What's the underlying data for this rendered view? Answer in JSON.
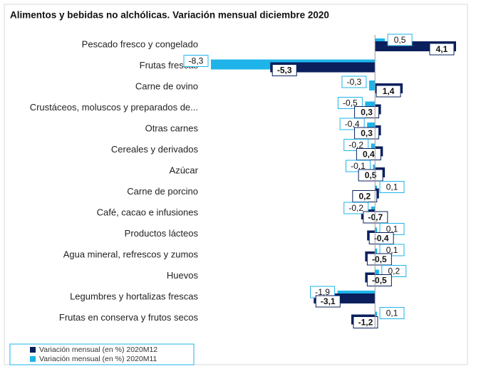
{
  "chart_data": {
    "type": "bar",
    "orientation": "horizontal",
    "title": "Alimentos y bebidas no alchólicas. Variación mensual diciembre 2020",
    "categories": [
      "Pescado fresco y congelado",
      "Frutas frescas",
      "Carne de ovino",
      "Crustáceos, moluscos y preparados de...",
      "Otras carnes",
      "Cereales y derivados",
      "Azúcar",
      "Carne de porcino",
      "Café, cacao e infusiones",
      "Productos lácteos",
      "Agua mineral, refrescos  y zumos",
      "Huevos",
      "Legumbres y hortalizas frescas",
      "Frutas en conserva y frutos secos"
    ],
    "series": [
      {
        "name": "Variación mensual (en %) 2020M12",
        "color": "#0a1f5c",
        "values": [
          4.1,
          -5.3,
          1.4,
          0.3,
          0.3,
          0.4,
          0.5,
          0.2,
          -0.7,
          -0.4,
          -0.5,
          -0.5,
          -3.1,
          -1.2
        ],
        "value_labels": [
          "4,1",
          "-5,3",
          "1,4",
          "0,3",
          "0,3",
          "0,4",
          "0,5",
          "0,2",
          "-0,7",
          "-0,4",
          "-0,5",
          "-0,5",
          "-3,1",
          "-1,2"
        ]
      },
      {
        "name": "Variación mensual (en %) 2020M11",
        "color": "#1eb4ea",
        "values": [
          0.5,
          -8.3,
          -0.3,
          -0.5,
          -0.4,
          -0.2,
          -0.1,
          0.1,
          -0.2,
          0.1,
          0.1,
          0.2,
          -1.9,
          0.1
        ],
        "value_labels": [
          "0,5",
          "-8,3",
          "-0,3",
          "-0,5",
          "-0,4",
          "-0,2",
          "-0,1",
          "0,1",
          "-0,2",
          "0,1",
          "0,1",
          "0,2",
          "-1,9",
          "0,1"
        ]
      }
    ]
  }
}
